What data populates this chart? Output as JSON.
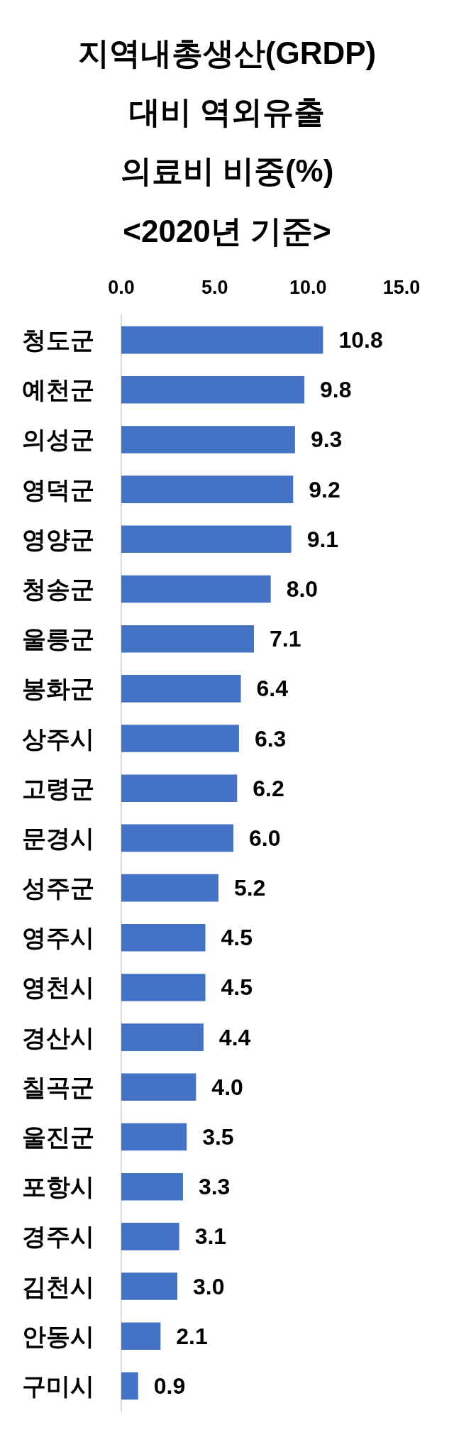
{
  "chart_data": {
    "type": "bar",
    "orientation": "horizontal",
    "title": "지역내총생산(GRDP)\n대비 역외유출\n의료비 비중(%)",
    "subtitle": "<2020년 기준>",
    "categories": [
      "청도군",
      "예천군",
      "의성군",
      "영덕군",
      "영양군",
      "청송군",
      "울릉군",
      "봉화군",
      "상주시",
      "고령군",
      "문경시",
      "성주군",
      "영주시",
      "영천시",
      "경산시",
      "칠곡군",
      "울진군",
      "포항시",
      "경주시",
      "김천시",
      "안동시",
      "구미시"
    ],
    "values": [
      10.8,
      9.8,
      9.3,
      9.2,
      9.1,
      8.0,
      7.1,
      6.4,
      6.3,
      6.2,
      6.0,
      5.2,
      4.5,
      4.5,
      4.4,
      4.0,
      3.5,
      3.3,
      3.1,
      3.0,
      2.1,
      0.9
    ],
    "value_labels": [
      "10.8",
      "9.8",
      "9.3",
      "9.2",
      "9.1",
      "8.0",
      "7.1",
      "6.4",
      "6.3",
      "6.2",
      "6.0",
      "5.2",
      "4.5",
      "4.5",
      "4.4",
      "4.0",
      "3.5",
      "3.3",
      "3.1",
      "3.0",
      "2.1",
      "0.9"
    ],
    "color": "#4472c4",
    "xlim": [
      0,
      15
    ],
    "xticks": [
      {
        "value": 0,
        "label": "0.0"
      },
      {
        "value": 5,
        "label": "5.0"
      },
      {
        "value": 10,
        "label": "10.0"
      },
      {
        "value": 15,
        "label": "15.0"
      }
    ],
    "grid": false
  }
}
